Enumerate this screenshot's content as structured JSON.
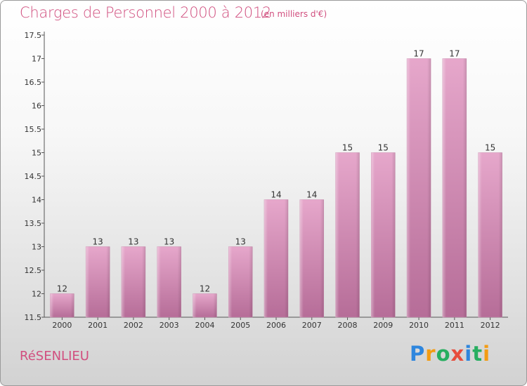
{
  "header": {
    "title": "Charges de Personnel 2000 à 2012",
    "subtitle": "(en milliers d'€)"
  },
  "footer": {
    "commune": "RéSENLIEU",
    "logo": {
      "letters": [
        "P",
        "r",
        "o",
        "x",
        "i",
        "t",
        "i"
      ],
      "colors": [
        "#2e86de",
        "#f39c12",
        "#27ae60",
        "#e74c3c",
        "#2e86de",
        "#27ae60",
        "#f39c12"
      ]
    }
  },
  "chart_data": {
    "type": "bar",
    "title": "Charges de Personnel 2000 à 2012",
    "subtitle": "(en milliers d'€)",
    "categories": [
      "2000",
      "2001",
      "2002",
      "2003",
      "2004",
      "2005",
      "2006",
      "2007",
      "2008",
      "2009",
      "2010",
      "2011",
      "2012"
    ],
    "values": [
      12,
      13,
      13,
      13,
      12,
      13,
      14,
      14,
      15,
      15,
      17,
      17,
      15
    ],
    "ylim": [
      11.5,
      17.5
    ],
    "yticks": [
      "11.5",
      "12",
      "12.5",
      "13",
      "13.5",
      "14",
      "14.5",
      "15",
      "15.5",
      "16",
      "16.5",
      "17",
      "17.5"
    ],
    "bar_color": "#d68fb5",
    "grid": false,
    "legend": "none"
  }
}
